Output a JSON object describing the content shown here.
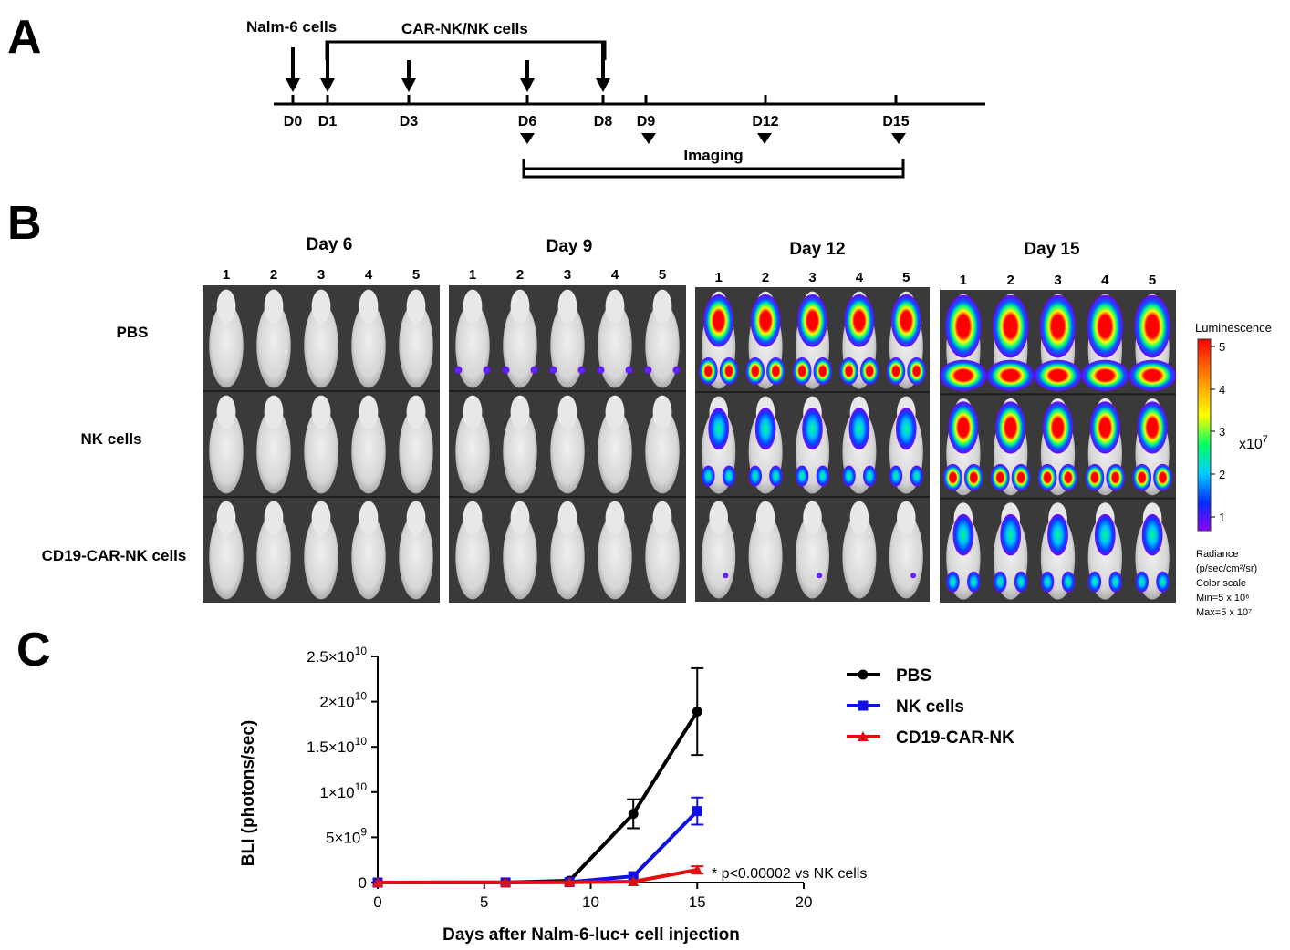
{
  "panels": {
    "a": "A",
    "b": "B",
    "c": "C"
  },
  "timeline": {
    "nalm_label": "Nalm-6 cells",
    "car_label": "CAR-NK/NK cells",
    "days": [
      "D0",
      "D1",
      "D3",
      "D6",
      "D8",
      "D9",
      "D12",
      "D15"
    ],
    "imaging_label": "Imaging"
  },
  "imaging": {
    "days": [
      "Day 6",
      "Day 9",
      "Day 12",
      "Day 15"
    ],
    "mouse_numbers": [
      "1",
      "2",
      "3",
      "4",
      "5"
    ],
    "groups": [
      "PBS",
      "NK cells",
      "CD19-CAR-NK cells"
    ],
    "colorbar": {
      "title": "Luminescence",
      "ticks": [
        "5",
        "4",
        "3",
        "2",
        "1"
      ],
      "unit": "x10",
      "unit_exp": "7",
      "notes": [
        "Radiance",
        "(p/sec/cm²/sr)",
        "Color scale",
        "Min=5 x 10⁶",
        "Max=5 x 10⁷"
      ]
    }
  },
  "chart_data": {
    "type": "line",
    "xlabel": "Days after Nalm-6-luc+ cell injection",
    "ylabel": "BLI (photons/sec)",
    "xlim": [
      0,
      20
    ],
    "ylim": [
      0,
      25000000000
    ],
    "x_ticks": [
      "0",
      "5",
      "10",
      "15",
      "20"
    ],
    "y_ticks": [
      {
        "base": "0",
        "exp": ""
      },
      {
        "base": "5×10",
        "exp": "9"
      },
      {
        "base": "1×10",
        "exp": "10"
      },
      {
        "base": "1.5×10",
        "exp": "10"
      },
      {
        "base": "2×10",
        "exp": "10"
      },
      {
        "base": "2.5×10",
        "exp": "10"
      }
    ],
    "legend_position": "top-right",
    "series": [
      {
        "name": "PBS",
        "color": "#000000",
        "marker": "circle",
        "x": [
          0,
          6,
          9,
          12,
          15
        ],
        "y": [
          0,
          10000000,
          200000000,
          7600000000,
          18900000000
        ],
        "err": [
          0,
          0,
          0,
          1600000000,
          4800000000
        ]
      },
      {
        "name": "NK cells",
        "color": "#1010e0",
        "marker": "square",
        "x": [
          0,
          6,
          9,
          12,
          15
        ],
        "y": [
          0,
          10000000,
          50000000,
          700000000,
          7900000000
        ],
        "err": [
          0,
          0,
          0,
          0,
          1500000000
        ]
      },
      {
        "name": "CD19-CAR-NK",
        "color": "#e01010",
        "marker": "triangle",
        "x": [
          0,
          6,
          9,
          12,
          15
        ],
        "y": [
          0,
          10000000,
          20000000,
          100000000,
          1400000000
        ],
        "err": [
          0,
          0,
          0,
          0,
          400000000
        ]
      }
    ],
    "annotation": "* p<0.00002 vs NK cells"
  }
}
